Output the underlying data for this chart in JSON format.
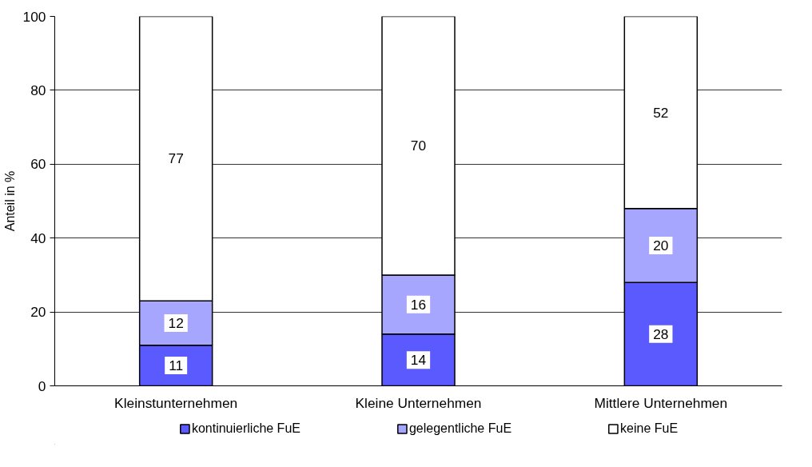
{
  "chart_data": {
    "type": "bar",
    "stacked": true,
    "ylabel": "Anteil in %",
    "categories": [
      "Kleinstunternehmen",
      "Kleine Unternehmen",
      "Mittlere Unternehmen"
    ],
    "series": [
      {
        "name": "kontinuierliche FuE",
        "color": "#5a5aff",
        "values": [
          11,
          14,
          28
        ]
      },
      {
        "name": "gelegentliche FuE",
        "color": "#a6a6ff",
        "values": [
          12,
          16,
          20
        ]
      },
      {
        "name": "keine FuE",
        "color": "#ffffff",
        "values": [
          77,
          70,
          52
        ]
      }
    ],
    "ylim": [
      0,
      100
    ],
    "yticks": [
      0,
      20,
      40,
      60,
      80,
      100
    ],
    "grid": "y",
    "legend": "bottom",
    "data_labels": true
  }
}
